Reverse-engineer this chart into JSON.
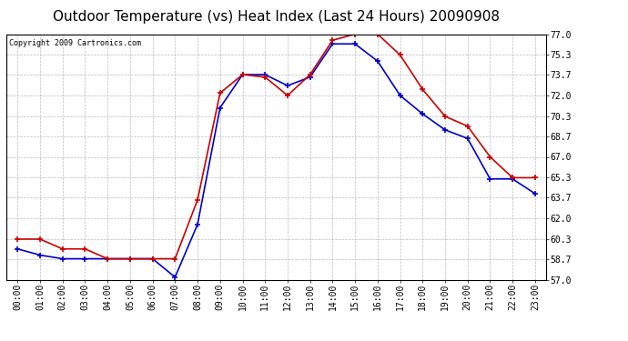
{
  "title": "Outdoor Temperature (vs) Heat Index (Last 24 Hours) 20090908",
  "copyright": "Copyright 2009 Cartronics.com",
  "hours": [
    "00:00",
    "01:00",
    "02:00",
    "03:00",
    "04:00",
    "05:00",
    "06:00",
    "07:00",
    "08:00",
    "09:00",
    "10:00",
    "11:00",
    "12:00",
    "13:00",
    "14:00",
    "15:00",
    "16:00",
    "17:00",
    "18:00",
    "19:00",
    "20:00",
    "21:00",
    "22:00",
    "23:00"
  ],
  "temp": [
    59.5,
    59.0,
    58.7,
    58.7,
    58.7,
    58.7,
    58.7,
    57.2,
    61.5,
    71.0,
    73.7,
    73.7,
    72.8,
    73.5,
    76.2,
    76.2,
    74.8,
    72.0,
    70.5,
    69.2,
    68.5,
    65.2,
    65.2,
    64.0
  ],
  "heat_index": [
    60.3,
    60.3,
    59.5,
    59.5,
    58.7,
    58.7,
    58.7,
    58.7,
    63.5,
    72.2,
    73.7,
    73.5,
    72.0,
    73.7,
    76.5,
    77.0,
    77.0,
    75.3,
    72.5,
    70.3,
    69.5,
    67.0,
    65.3,
    65.3
  ],
  "temp_color": "#0000cc",
  "heat_color": "#cc0000",
  "ylim_min": 57.0,
  "ylim_max": 77.0,
  "yticks": [
    57.0,
    58.7,
    60.3,
    62.0,
    63.7,
    65.3,
    67.0,
    68.7,
    70.3,
    72.0,
    73.7,
    75.3,
    77.0
  ],
  "bg_color": "#ffffff",
  "grid_color": "#bbbbbb",
  "title_fontsize": 11,
  "copyright_fontsize": 6,
  "tick_fontsize": 7
}
